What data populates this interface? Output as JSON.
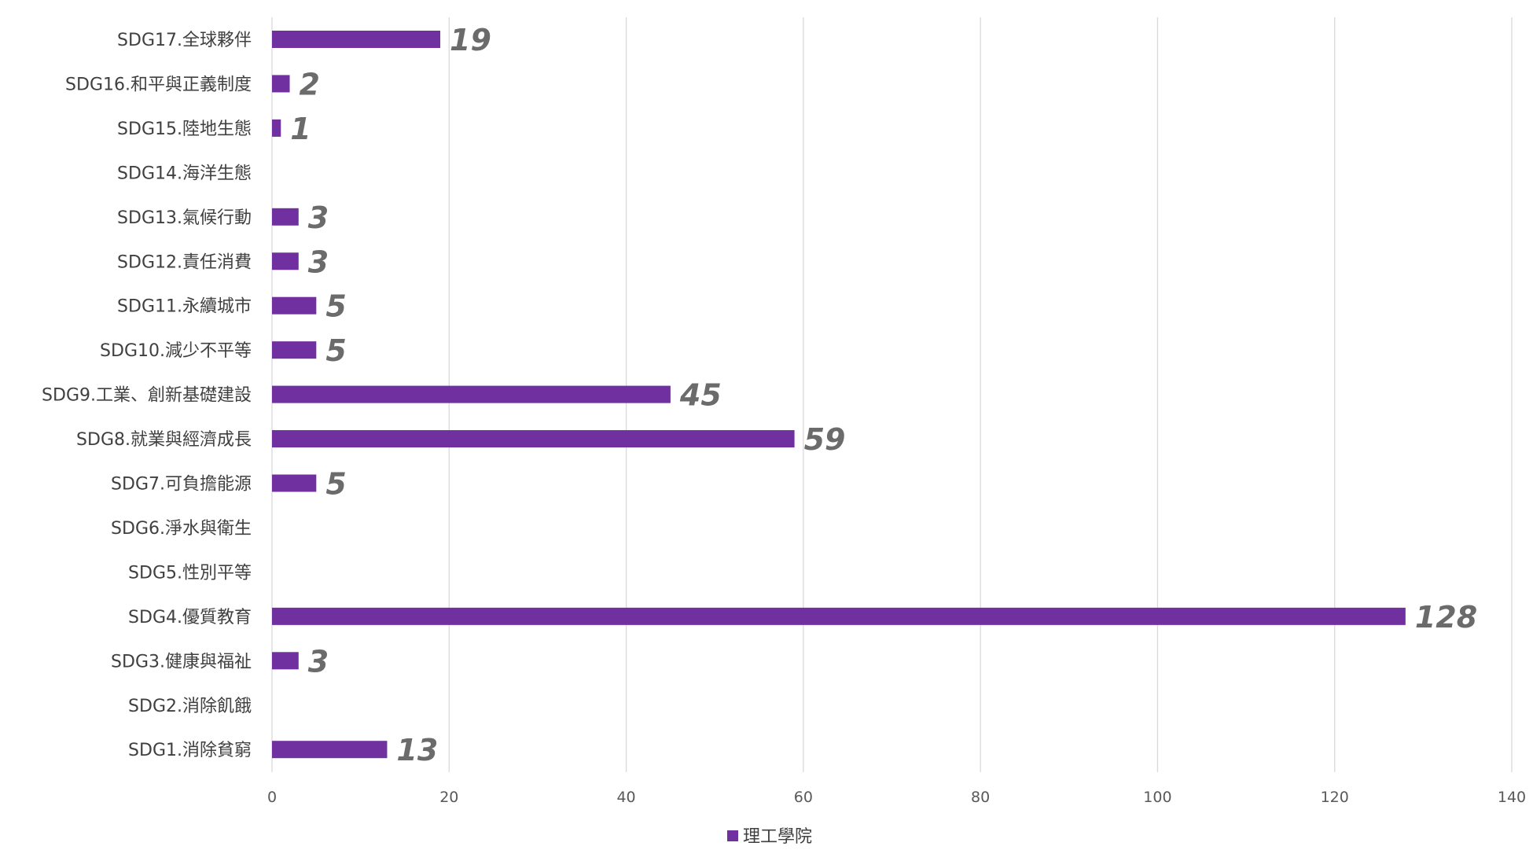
{
  "chart_data": {
    "type": "bar",
    "orientation": "horizontal",
    "categories": [
      "SDG1.消除貧窮",
      "SDG2.消除飢餓",
      "SDG3.健康與福祉",
      "SDG4.優質教育",
      "SDG5.性別平等",
      "SDG6.淨水與衛生",
      "SDG7.可負擔能源",
      "SDG8.就業與經濟成長",
      "SDG9.工業、創新基礎建設",
      "SDG10.減少不平等",
      "SDG11.永續城市",
      "SDG12.責任消費",
      "SDG13.氣候行動",
      "SDG14.海洋生態",
      "SDG15.陸地生態",
      "SDG16.和平與正義制度",
      "SDG17.全球夥伴"
    ],
    "series": [
      {
        "name": "理工學院",
        "color": "#7030a0",
        "values": [
          13,
          null,
          3,
          128,
          null,
          null,
          5,
          59,
          45,
          5,
          5,
          3,
          3,
          null,
          1,
          2,
          19
        ],
        "labels": [
          "13",
          "",
          "3",
          "128",
          "",
          "",
          "5",
          "59",
          "45",
          "5",
          "5",
          "3",
          "3",
          "",
          "1",
          "2",
          "19"
        ]
      }
    ],
    "xlim": [
      0,
      140
    ],
    "x_ticks": [
      "0",
      "20",
      "40",
      "60",
      "80",
      "100",
      "120",
      "140"
    ],
    "grid": true,
    "legend_position": "bottom",
    "title": "",
    "xlabel": "",
    "ylabel": ""
  }
}
